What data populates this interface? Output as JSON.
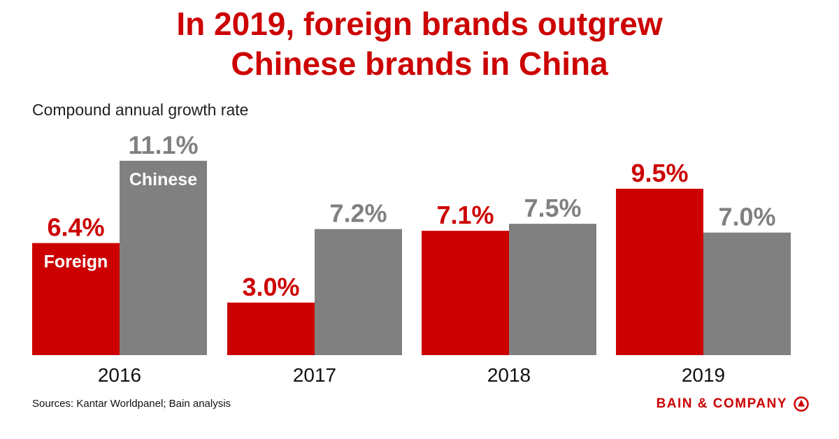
{
  "title_line1": "In 2019, foreign brands outgrew",
  "title_line2": "Chinese brands in China",
  "subtitle": "Compound annual growth rate",
  "source": "Sources: Kantar Worldpanel; Bain analysis",
  "logo_text": "BAIN & COMPANY",
  "logo_icon": "bain-circle-icon",
  "colors": {
    "foreign": "#cc0000",
    "chinese": "#808080",
    "title": "#cc0000"
  },
  "chart_data": {
    "type": "bar",
    "title": "In 2019, foreign brands outgrew Chinese brands in China",
    "ylabel": "Compound annual growth rate",
    "categories": [
      "2016",
      "2017",
      "2018",
      "2019"
    ],
    "series": [
      {
        "name": "Foreign",
        "values": [
          6.4,
          3.0,
          7.1,
          9.5
        ],
        "labels": [
          "6.4%",
          "3.0%",
          "7.1%",
          "9.5%"
        ]
      },
      {
        "name": "Chinese",
        "values": [
          11.1,
          7.2,
          7.5,
          7.0
        ],
        "labels": [
          "11.1%",
          "7.2%",
          "7.5%",
          "7.0%"
        ]
      }
    ],
    "ylim": [
      0,
      11.1
    ],
    "grid": false,
    "legend": "inside-first-bars"
  }
}
